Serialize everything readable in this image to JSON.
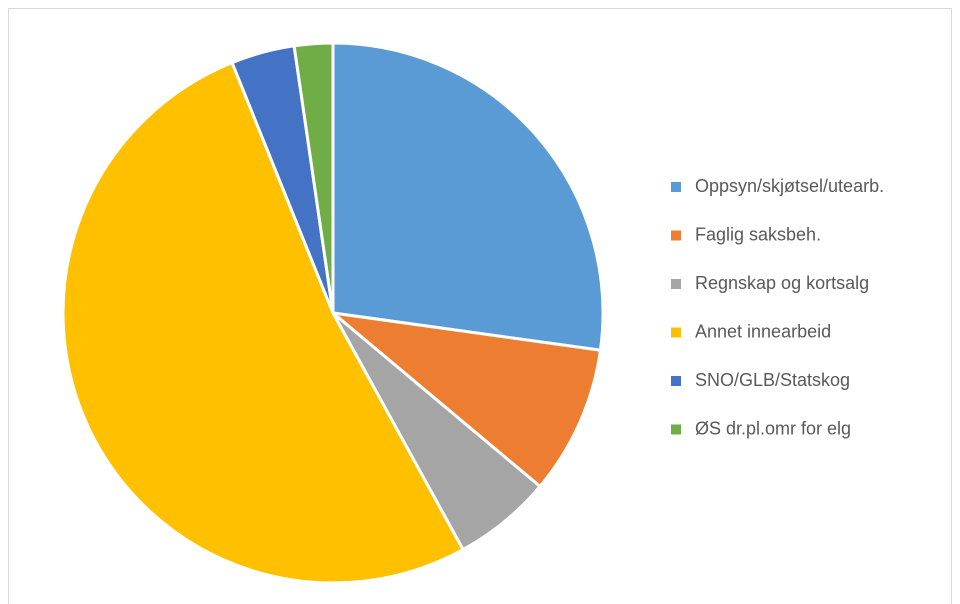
{
  "chart_data": {
    "type": "pie",
    "categories": [
      "Oppsyn/skjøtsel/utearb.",
      "Faglig saksbeh.",
      "Regnskap og kortsalg",
      "Annet innearbeid",
      "SNO/GLB/Statskog",
      "ØS dr.pl.omr for elg"
    ],
    "values": [
      27.2,
      8.9,
      5.9,
      51.9,
      3.8,
      2.3
    ],
    "colors": [
      "#5b9bd5",
      "#ed7d31",
      "#a5a5a5",
      "#ffc000",
      "#4472c4",
      "#70ad47"
    ],
    "legend": "right"
  }
}
